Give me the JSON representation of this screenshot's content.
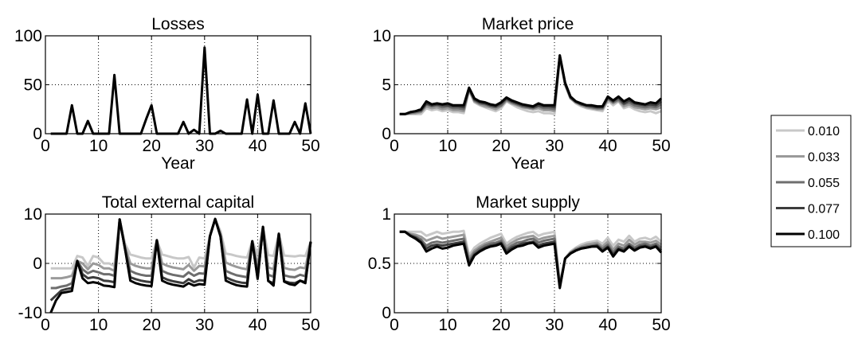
{
  "legend": {
    "placement": "right",
    "entries": [
      {
        "label": "0.010",
        "color": "#c8c8c8"
      },
      {
        "label": "0.033",
        "color": "#9a9a9a"
      },
      {
        "label": "0.055",
        "color": "#6e6e6e"
      },
      {
        "label": "0.077",
        "color": "#3c3c3c"
      },
      {
        "label": "0.100",
        "color": "#000000"
      }
    ]
  },
  "chart_data": [
    {
      "type": "line",
      "title": "Losses",
      "xlabel": "Year",
      "ylabel": "",
      "xlim": [
        0,
        50
      ],
      "ylim": [
        0,
        100
      ],
      "xticks": [
        0,
        10,
        20,
        30,
        40,
        50
      ],
      "yticks": [
        0,
        50,
        100
      ],
      "grid": true,
      "x": [
        1,
        2,
        3,
        4,
        5,
        6,
        7,
        8,
        9,
        10,
        11,
        12,
        13,
        14,
        15,
        16,
        17,
        18,
        19,
        20,
        21,
        22,
        23,
        24,
        25,
        26,
        27,
        28,
        29,
        30,
        31,
        32,
        33,
        34,
        35,
        36,
        37,
        38,
        39,
        40,
        41,
        42,
        43,
        44,
        45,
        46,
        47,
        48,
        49,
        50
      ],
      "series": [
        {
          "name": "0.100",
          "values": [
            0,
            0,
            0,
            0,
            29,
            0,
            0,
            13,
            0,
            0,
            0,
            0,
            60,
            0,
            0,
            0,
            0,
            0,
            15,
            29,
            0,
            0,
            0,
            0,
            0,
            12,
            0,
            4,
            0,
            88,
            0,
            0,
            3,
            0,
            0,
            0,
            0,
            35,
            0,
            40,
            0,
            0,
            34,
            0,
            0,
            0,
            12,
            0,
            31,
            0
          ]
        }
      ]
    },
    {
      "type": "line",
      "title": "Market price",
      "xlabel": "Year",
      "ylabel": "",
      "xlim": [
        0,
        50
      ],
      "ylim": [
        0,
        10
      ],
      "xticks": [
        0,
        10,
        20,
        30,
        40,
        50
      ],
      "yticks": [
        0,
        5,
        10
      ],
      "grid": true,
      "x": [
        1,
        2,
        3,
        4,
        5,
        6,
        7,
        8,
        9,
        10,
        11,
        12,
        13,
        14,
        15,
        16,
        17,
        18,
        19,
        20,
        21,
        22,
        23,
        24,
        25,
        26,
        27,
        28,
        29,
        30,
        31,
        32,
        33,
        34,
        35,
        36,
        37,
        38,
        39,
        40,
        41,
        42,
        43,
        44,
        45,
        46,
        47,
        48,
        49,
        50
      ],
      "series": [
        {
          "name": "0.010",
          "values": [
            2.0,
            2.0,
            2.0,
            2.0,
            2.0,
            2.6,
            2.4,
            2.5,
            2.3,
            2.4,
            2.2,
            2.2,
            2.1,
            4.4,
            3.2,
            2.9,
            2.7,
            2.5,
            2.3,
            2.6,
            3.3,
            3.0,
            2.7,
            2.5,
            2.3,
            2.2,
            2.3,
            2.1,
            2.1,
            2.0,
            7.8,
            5.0,
            3.6,
            3.1,
            2.8,
            2.6,
            2.5,
            2.4,
            2.3,
            3.4,
            2.9,
            3.3,
            2.6,
            2.8,
            2.5,
            2.3,
            2.2,
            2.3,
            2.1,
            2.3
          ]
        },
        {
          "name": "0.033",
          "values": [
            2.0,
            2.0,
            2.1,
            2.1,
            2.2,
            2.8,
            2.6,
            2.7,
            2.5,
            2.6,
            2.4,
            2.4,
            2.3,
            4.5,
            3.3,
            3.0,
            2.8,
            2.7,
            2.5,
            2.8,
            3.4,
            3.1,
            2.9,
            2.7,
            2.6,
            2.5,
            2.6,
            2.4,
            2.4,
            2.3,
            7.9,
            5.0,
            3.6,
            3.2,
            2.9,
            2.7,
            2.6,
            2.5,
            2.5,
            3.5,
            3.1,
            3.4,
            2.8,
            3.0,
            2.7,
            2.6,
            2.5,
            2.6,
            2.5,
            2.7
          ]
        },
        {
          "name": "0.055",
          "values": [
            2.0,
            2.0,
            2.1,
            2.2,
            2.3,
            3.0,
            2.8,
            2.9,
            2.7,
            2.8,
            2.6,
            2.6,
            2.5,
            4.6,
            3.4,
            3.1,
            3.0,
            2.8,
            2.7,
            2.9,
            3.5,
            3.2,
            3.0,
            2.8,
            2.7,
            2.6,
            2.8,
            2.6,
            2.6,
            2.5,
            7.9,
            5.1,
            3.7,
            3.2,
            3.0,
            2.8,
            2.7,
            2.6,
            2.6,
            3.6,
            3.2,
            3.5,
            3.0,
            3.2,
            2.9,
            2.8,
            2.7,
            2.8,
            2.7,
            3.0
          ]
        },
        {
          "name": "0.077",
          "values": [
            2.0,
            2.0,
            2.2,
            2.3,
            2.4,
            3.1,
            2.9,
            3.0,
            2.9,
            2.9,
            2.8,
            2.8,
            2.7,
            4.6,
            3.5,
            3.2,
            3.1,
            2.9,
            2.8,
            3.1,
            3.6,
            3.3,
            3.1,
            2.9,
            2.8,
            2.7,
            2.9,
            2.8,
            2.8,
            2.7,
            8.0,
            5.1,
            3.7,
            3.3,
            3.0,
            2.9,
            2.8,
            2.7,
            2.7,
            3.7,
            3.3,
            3.7,
            3.1,
            3.4,
            3.1,
            3.0,
            2.9,
            3.0,
            2.9,
            3.3
          ]
        },
        {
          "name": "0.100",
          "values": [
            2.0,
            2.0,
            2.2,
            2.3,
            2.5,
            3.3,
            3.0,
            3.1,
            3.0,
            3.1,
            2.9,
            2.9,
            2.9,
            4.7,
            3.6,
            3.3,
            3.2,
            3.0,
            2.9,
            3.2,
            3.7,
            3.4,
            3.2,
            3.0,
            2.9,
            2.8,
            3.1,
            2.9,
            2.9,
            2.9,
            8.0,
            5.2,
            3.8,
            3.3,
            3.1,
            2.9,
            2.9,
            2.8,
            2.8,
            3.8,
            3.4,
            3.8,
            3.3,
            3.6,
            3.2,
            3.1,
            3.0,
            3.2,
            3.1,
            3.6
          ]
        }
      ]
    },
    {
      "type": "line",
      "title": "Total external capital",
      "xlabel": "",
      "ylabel": "",
      "xlim": [
        0,
        50
      ],
      "ylim": [
        -10,
        10
      ],
      "xticks": [
        0,
        10,
        20,
        30,
        40,
        50
      ],
      "yticks": [
        -10,
        0,
        10
      ],
      "grid": true,
      "x": [
        1,
        2,
        3,
        4,
        5,
        6,
        7,
        8,
        9,
        10,
        11,
        12,
        13,
        14,
        15,
        16,
        17,
        18,
        19,
        20,
        21,
        22,
        23,
        24,
        25,
        26,
        27,
        28,
        29,
        30,
        31,
        32,
        33,
        34,
        35,
        36,
        37,
        38,
        39,
        40,
        41,
        42,
        43,
        44,
        45,
        46,
        47,
        48,
        49,
        50
      ],
      "series": [
        {
          "name": "0.010",
          "values": [
            -1.0,
            -1.0,
            -1.0,
            -1.0,
            -1.0,
            1.5,
            1.2,
            -0.5,
            1.5,
            1.2,
            0.0,
            0.0,
            -0.5,
            8.9,
            4.0,
            1.8,
            1.5,
            1.2,
            1.0,
            1.0,
            4.7,
            1.8,
            1.5,
            1.2,
            1.0,
            1.0,
            1.3,
            -0.8,
            1.2,
            1.0,
            5.5,
            9.0,
            6.5,
            2.0,
            1.8,
            1.5,
            1.3,
            1.2,
            4.5,
            1.8,
            7.4,
            1.7,
            1.5,
            6.0,
            1.6,
            1.5,
            1.4,
            1.6,
            1.5,
            4.4
          ]
        },
        {
          "name": "0.033",
          "values": [
            -3.0,
            -3.0,
            -3.0,
            -2.8,
            -2.5,
            0.5,
            0.0,
            -1.2,
            0.0,
            -0.3,
            -1.0,
            -1.0,
            -1.5,
            8.9,
            3.5,
            0.0,
            -0.5,
            -0.8,
            -1.0,
            -1.0,
            4.7,
            0.0,
            -0.5,
            -0.8,
            -1.0,
            -1.2,
            -0.3,
            -1.5,
            -0.5,
            -0.6,
            5.5,
            9.0,
            6.0,
            0.2,
            -0.3,
            -0.7,
            -1.0,
            -1.2,
            4.5,
            -0.5,
            7.4,
            -0.8,
            -1.2,
            6.0,
            -0.9,
            -1.2,
            -1.3,
            -0.8,
            -1.0,
            4.4
          ]
        },
        {
          "name": "0.055",
          "values": [
            -5.0,
            -5.0,
            -4.7,
            -4.5,
            -4.0,
            0.5,
            -1.2,
            -2.0,
            -1.5,
            -1.8,
            -2.2,
            -2.2,
            -2.5,
            8.9,
            3.0,
            -1.5,
            -2.0,
            -2.3,
            -2.5,
            -2.5,
            4.7,
            -1.5,
            -2.0,
            -2.3,
            -2.5,
            -2.7,
            -1.8,
            -2.5,
            -2.0,
            -2.1,
            5.5,
            9.0,
            5.5,
            -1.5,
            -2.0,
            -2.4,
            -2.6,
            -2.8,
            4.5,
            -2.0,
            7.4,
            -2.3,
            -2.7,
            6.0,
            -2.4,
            -2.7,
            -2.8,
            -2.3,
            -2.6,
            4.4
          ]
        },
        {
          "name": "0.077",
          "values": [
            -7.5,
            -6.5,
            -5.5,
            -5.2,
            -5.0,
            0.5,
            -2.2,
            -3.0,
            -2.8,
            -3.0,
            -3.5,
            -3.6,
            -3.8,
            8.9,
            3.0,
            -2.8,
            -3.2,
            -3.5,
            -3.7,
            -3.8,
            4.7,
            -2.8,
            -3.3,
            -3.6,
            -3.8,
            -4.0,
            -3.2,
            -3.8,
            -3.4,
            -3.5,
            5.5,
            9.0,
            5.5,
            -2.8,
            -3.3,
            -3.7,
            -3.9,
            -4.0,
            4.5,
            -3.2,
            7.4,
            -3.6,
            -4.0,
            6.0,
            -3.6,
            -3.9,
            -4.0,
            -3.5,
            -3.8,
            4.4
          ]
        },
        {
          "name": "0.100",
          "values": [
            -10.0,
            -7.5,
            -6.0,
            -5.8,
            -5.6,
            0.5,
            -3.0,
            -4.0,
            -3.8,
            -4.0,
            -4.5,
            -4.6,
            -4.8,
            8.9,
            3.0,
            -3.5,
            -4.0,
            -4.3,
            -4.5,
            -4.6,
            4.7,
            -3.5,
            -4.0,
            -4.3,
            -4.5,
            -4.7,
            -4.0,
            -4.5,
            -4.2,
            -4.3,
            5.5,
            9.0,
            5.5,
            -3.5,
            -4.0,
            -4.4,
            -4.6,
            -4.7,
            4.5,
            -3.0,
            7.4,
            -3.5,
            -4.5,
            6.0,
            -3.7,
            -4.2,
            -4.4,
            -3.5,
            -4.0,
            4.4
          ]
        }
      ]
    },
    {
      "type": "line",
      "title": "Market supply",
      "xlabel": "",
      "ylabel": "",
      "xlim": [
        0,
        50
      ],
      "ylim": [
        0,
        1
      ],
      "xticks": [
        0,
        10,
        20,
        30,
        40,
        50
      ],
      "yticks": [
        0,
        0.5,
        1
      ],
      "grid": true,
      "x": [
        1,
        2,
        3,
        4,
        5,
        6,
        7,
        8,
        9,
        10,
        11,
        12,
        13,
        14,
        15,
        16,
        17,
        18,
        19,
        20,
        21,
        22,
        23,
        24,
        25,
        26,
        27,
        28,
        29,
        30,
        31,
        32,
        33,
        34,
        35,
        36,
        37,
        38,
        39,
        40,
        41,
        42,
        43,
        44,
        45,
        46,
        47,
        48,
        49,
        50
      ],
      "series": [
        {
          "name": "0.010",
          "values": [
            0.82,
            0.82,
            0.82,
            0.82,
            0.82,
            0.78,
            0.8,
            0.82,
            0.8,
            0.81,
            0.82,
            0.82,
            0.83,
            0.58,
            0.66,
            0.7,
            0.73,
            0.76,
            0.78,
            0.8,
            0.7,
            0.74,
            0.77,
            0.79,
            0.81,
            0.82,
            0.78,
            0.8,
            0.81,
            0.82,
            0.3,
            0.55,
            0.62,
            0.66,
            0.69,
            0.71,
            0.72,
            0.73,
            0.7,
            0.76,
            0.68,
            0.74,
            0.72,
            0.78,
            0.72,
            0.75,
            0.76,
            0.74,
            0.77,
            0.72
          ]
        },
        {
          "name": "0.033",
          "values": [
            0.82,
            0.82,
            0.8,
            0.79,
            0.77,
            0.73,
            0.75,
            0.77,
            0.75,
            0.76,
            0.77,
            0.78,
            0.79,
            0.55,
            0.63,
            0.67,
            0.7,
            0.72,
            0.74,
            0.76,
            0.67,
            0.71,
            0.74,
            0.76,
            0.77,
            0.78,
            0.74,
            0.76,
            0.77,
            0.78,
            0.28,
            0.55,
            0.61,
            0.65,
            0.67,
            0.69,
            0.7,
            0.71,
            0.67,
            0.72,
            0.64,
            0.7,
            0.68,
            0.74,
            0.69,
            0.72,
            0.72,
            0.71,
            0.73,
            0.69
          ]
        },
        {
          "name": "0.055",
          "values": [
            0.82,
            0.82,
            0.79,
            0.77,
            0.74,
            0.68,
            0.71,
            0.72,
            0.71,
            0.72,
            0.73,
            0.74,
            0.75,
            0.52,
            0.61,
            0.65,
            0.68,
            0.7,
            0.71,
            0.73,
            0.64,
            0.68,
            0.71,
            0.72,
            0.74,
            0.75,
            0.71,
            0.73,
            0.74,
            0.75,
            0.27,
            0.55,
            0.61,
            0.64,
            0.66,
            0.67,
            0.68,
            0.69,
            0.65,
            0.69,
            0.61,
            0.67,
            0.65,
            0.7,
            0.66,
            0.69,
            0.7,
            0.68,
            0.7,
            0.66
          ]
        },
        {
          "name": "0.077",
          "values": [
            0.82,
            0.82,
            0.78,
            0.76,
            0.72,
            0.65,
            0.68,
            0.69,
            0.68,
            0.69,
            0.7,
            0.71,
            0.72,
            0.5,
            0.59,
            0.63,
            0.66,
            0.68,
            0.69,
            0.71,
            0.62,
            0.66,
            0.68,
            0.7,
            0.71,
            0.72,
            0.68,
            0.7,
            0.71,
            0.72,
            0.26,
            0.55,
            0.6,
            0.63,
            0.65,
            0.66,
            0.67,
            0.68,
            0.63,
            0.67,
            0.59,
            0.65,
            0.63,
            0.68,
            0.64,
            0.67,
            0.68,
            0.66,
            0.68,
            0.63
          ]
        },
        {
          "name": "0.100",
          "values": [
            0.82,
            0.82,
            0.78,
            0.75,
            0.71,
            0.62,
            0.65,
            0.67,
            0.65,
            0.66,
            0.68,
            0.69,
            0.7,
            0.48,
            0.58,
            0.62,
            0.65,
            0.67,
            0.68,
            0.7,
            0.6,
            0.64,
            0.67,
            0.68,
            0.7,
            0.71,
            0.66,
            0.68,
            0.69,
            0.7,
            0.25,
            0.55,
            0.6,
            0.63,
            0.65,
            0.66,
            0.67,
            0.67,
            0.62,
            0.66,
            0.57,
            0.64,
            0.62,
            0.67,
            0.63,
            0.66,
            0.67,
            0.65,
            0.67,
            0.61
          ]
        }
      ]
    }
  ]
}
